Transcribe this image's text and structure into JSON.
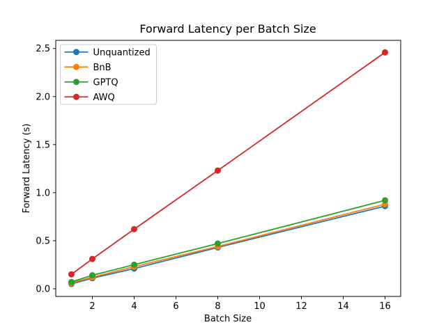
{
  "chart_data": {
    "type": "line",
    "title": "Forward Latency per Batch Size",
    "xlabel": "Batch Size",
    "ylabel": "Forward Latency (s)",
    "x": [
      1,
      2,
      4,
      8,
      16
    ],
    "series": [
      {
        "name": "Unquantized",
        "color": "#1f77b4",
        "values": [
          0.05,
          0.11,
          0.21,
          0.43,
          0.86
        ]
      },
      {
        "name": "BnB",
        "color": "#ff7f0e",
        "values": [
          0.06,
          0.12,
          0.23,
          0.44,
          0.88
        ]
      },
      {
        "name": "GPTQ",
        "color": "#2ca02c",
        "values": [
          0.07,
          0.14,
          0.25,
          0.47,
          0.92
        ]
      },
      {
        "name": "AWQ",
        "color": "#d62728",
        "values": [
          0.15,
          0.31,
          0.62,
          1.23,
          2.46
        ]
      }
    ],
    "xlim": [
      0.25,
      16.75
    ],
    "ylim": [
      -0.08,
      2.585
    ],
    "xticks": [
      "2",
      "4",
      "6",
      "8",
      "10",
      "12",
      "14",
      "16"
    ],
    "yticks": [
      "0.0",
      "0.5",
      "1.0",
      "1.5",
      "2.0",
      "2.5"
    ],
    "grid": false,
    "legend_position": "upper-left",
    "marker": "circle",
    "background_color": "#ffffff",
    "spine_color": "#000000",
    "legend_border_color": "#cccccc"
  }
}
